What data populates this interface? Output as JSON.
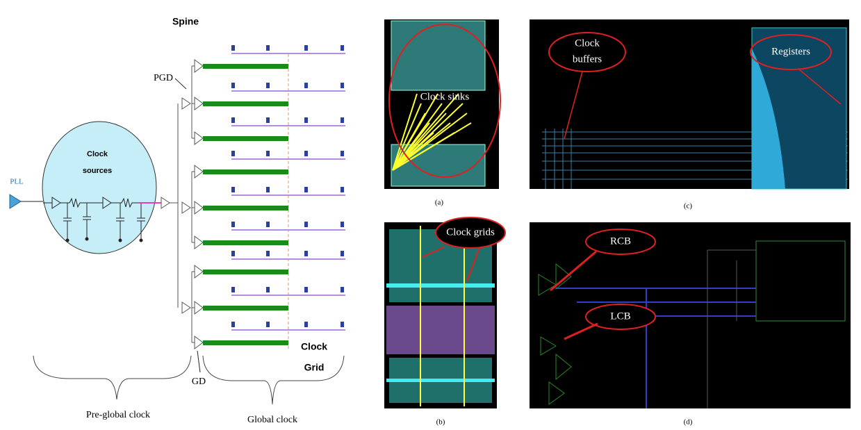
{
  "pre_global": {
    "pll": "PLL",
    "clock_sources": [
      "Clock",
      "sources"
    ],
    "pgd": "PGD",
    "gd": "GD",
    "spine": "Spine",
    "clock_grid": [
      "Clock",
      "Grid"
    ],
    "pre_global_clock": "Pre-global clock",
    "global_clock": "Global clock"
  },
  "panels": [
    {
      "caption": "(a)",
      "callouts": [
        "Clock sinks"
      ]
    },
    {
      "caption": "(c)",
      "callouts": [
        [
          "Clock",
          "buffers"
        ],
        "Registers"
      ]
    },
    {
      "caption": "(b)",
      "callouts": [
        "Clock grids"
      ]
    },
    {
      "caption": "(d)",
      "callouts": [
        "RCB",
        "LCB"
      ]
    }
  ]
}
